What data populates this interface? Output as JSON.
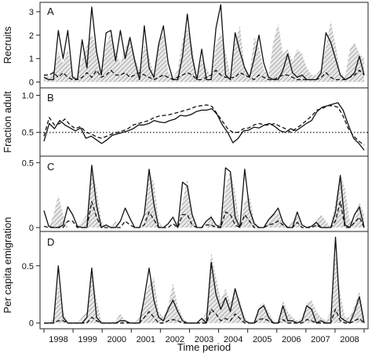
{
  "chart_data": {
    "type": "line",
    "xlabel": "Time period",
    "x_ticks": [
      "1998",
      "1999",
      "2000",
      "2001",
      "2002",
      "2003",
      "2004",
      "2005",
      "2006",
      "2007",
      "2008"
    ],
    "panels": [
      {
        "letter": "A",
        "ylabel": "Recruits",
        "ylim": [
          -0.25,
          3.4
        ],
        "yticks": [
          "0",
          "1",
          "2",
          "3"
        ],
        "reference_line": null,
        "series": [
          {
            "style": "solid",
            "values": [
              0.2,
              0.1,
              0.1,
              2.2,
              1.0,
              2.2,
              0.2,
              0.1,
              1.8,
              0.6,
              3.2,
              1.3,
              0.3,
              2.1,
              2.2,
              0.9,
              2.2,
              1.0,
              1.9,
              0.9,
              0.1,
              2.4,
              0.6,
              0.2,
              1.6,
              2.4,
              0.8,
              0.1,
              0.1,
              1.1,
              2.9,
              1.1,
              0.1,
              1.4,
              0.1,
              0.1,
              2.3,
              3.3,
              0.3,
              0.1,
              2.1,
              1.3,
              0.6,
              0.2,
              1.0,
              2.0,
              0.8,
              0.2,
              0.1,
              0.1,
              0.5,
              1.2,
              0.4,
              0.2,
              0.3,
              0.1,
              0.1,
              0.1,
              0.4,
              2.1,
              1.7,
              1.0,
              0.3,
              0.1,
              0.2,
              0.4,
              1.1,
              0.3
            ]
          },
          {
            "style": "dashed",
            "values": [
              0.3,
              0.3,
              0.4,
              0.2,
              0.4,
              0.2,
              0.1,
              0.1,
              0.2,
              0.4,
              0.2,
              0.5,
              0.2,
              0.3,
              0.5,
              0.3,
              0.3,
              0.4,
              0.2,
              0.3,
              0.4,
              0.3,
              0.2,
              0.1,
              0.2,
              0.3,
              0.2,
              0.1,
              0.2,
              0.3,
              0.4,
              0.3,
              0.1,
              0.1,
              0.2,
              0.3,
              0.5,
              0.3,
              0.2,
              0.2,
              0.2,
              0.4,
              0.3,
              0.2,
              0.1,
              0.3,
              0.2,
              0.1,
              0.1,
              0.2,
              0.3,
              0.3,
              0.2,
              0.1,
              0.1,
              0.1,
              0.1,
              0.1,
              0.2,
              0.4,
              0.2,
              0.1,
              0.1,
              0.1,
              0.2,
              0.3,
              0.5,
              0.3
            ]
          },
          {
            "style": "shaded",
            "values": [
              0.4,
              0.2,
              0.5,
              1.3,
              0.8,
              1.4,
              0.3,
              0.2,
              1.0,
              1.6,
              2.0,
              1.5,
              0.4,
              1.6,
              2.1,
              1.3,
              0.8,
              1.4,
              2.0,
              1.1,
              0.5,
              1.6,
              1.1,
              0.3,
              1.7,
              2.1,
              0.4,
              0.2,
              0.5,
              1.8,
              2.3,
              1.5,
              0.2,
              1.0,
              0.6,
              0.2,
              1.6,
              2.1,
              1.3,
              0.3,
              1.7,
              2.4,
              0.6,
              0.3,
              1.9,
              1.5,
              0.5,
              0.3,
              1.7,
              2.5,
              1.2,
              1.4,
              0.9,
              1.4,
              1.2,
              0.6,
              0.3,
              0.3,
              0.6,
              1.5,
              2.6,
              1.6,
              0.4,
              0.2,
              1.4,
              1.7,
              1.2,
              1.0
            ]
          }
        ]
      },
      {
        "letter": "B",
        "ylabel": "Fraction adult",
        "ylim": [
          0.18,
          1.1
        ],
        "yticks": [
          "0.5",
          "1.0"
        ],
        "reference_line": 0.5,
        "series": [
          {
            "style": "solid",
            "values": [
              0.38,
              0.62,
              0.55,
              0.66,
              0.6,
              0.56,
              0.52,
              0.56,
              0.42,
              0.45,
              0.4,
              0.35,
              0.4,
              0.46,
              0.48,
              0.5,
              0.52,
              0.55,
              0.6,
              0.6,
              0.62,
              0.66,
              0.64,
              0.63,
              0.66,
              0.68,
              0.73,
              0.72,
              0.74,
              0.78,
              0.8,
              0.8,
              0.82,
              0.74,
              0.6,
              0.5,
              0.36,
              0.42,
              0.52,
              0.53,
              0.57,
              0.56,
              0.6,
              0.62,
              0.58,
              0.52,
              0.5,
              0.55,
              0.52,
              0.57,
              0.62,
              0.66,
              0.78,
              0.84,
              0.86,
              0.88,
              0.9,
              0.8,
              0.6,
              0.42,
              0.35,
              0.26
            ]
          },
          {
            "style": "dashed",
            "values": [
              0.45,
              0.7,
              0.6,
              0.62,
              0.68,
              0.6,
              0.55,
              0.58,
              0.5,
              0.48,
              0.44,
              0.42,
              0.45,
              0.48,
              0.5,
              0.52,
              0.55,
              0.6,
              0.62,
              0.64,
              0.66,
              0.7,
              0.72,
              0.73,
              0.74,
              0.76,
              0.78,
              0.8,
              0.82,
              0.85,
              0.86,
              0.87,
              0.85,
              0.75,
              0.65,
              0.55,
              0.5,
              0.5,
              0.55,
              0.56,
              0.6,
              0.62,
              0.6,
              0.6,
              0.62,
              0.58,
              0.55,
              0.5,
              0.55,
              0.6,
              0.66,
              0.72,
              0.8,
              0.82,
              0.86,
              0.86,
              0.84,
              0.72,
              0.55,
              0.45,
              0.38,
              0.33
            ]
          }
        ]
      },
      {
        "letter": "C",
        "ylabel": "",
        "ylim": [
          -0.03,
          0.55
        ],
        "yticks": [
          "0",
          "0.5"
        ],
        "reference_line": null,
        "series": [
          {
            "style": "solid",
            "values": [
              0.13,
              0.01,
              0.0,
              0.0,
              0.02,
              0.16,
              0.1,
              0.01,
              0.0,
              0.0,
              0.48,
              0.17,
              0.0,
              0.02,
              0.0,
              0.0,
              0.05,
              0.15,
              0.07,
              0.0,
              0.0,
              0.1,
              0.45,
              0.18,
              0.0,
              0.0,
              0.03,
              0.08,
              0.0,
              0.35,
              0.32,
              0.1,
              0.0,
              0.0,
              0.05,
              0.08,
              0.02,
              0.0,
              0.46,
              0.43,
              0.08,
              0.0,
              0.45,
              0.14,
              0.03,
              0.0,
              0.0,
              0.06,
              0.1,
              0.15,
              0.04,
              0.0,
              0.0,
              0.12,
              0.02,
              0.0,
              0.01,
              0.04,
              0.0,
              0.0,
              0.0,
              0.12,
              0.4,
              0.02,
              0.0,
              0.1,
              0.16,
              0.0
            ]
          },
          {
            "style": "dashed",
            "values": [
              0.01,
              0.0,
              0.0,
              0.0,
              0.0,
              0.05,
              0.05,
              0.0,
              0.0,
              0.0,
              0.2,
              0.08,
              0.0,
              0.0,
              0.0,
              0.0,
              0.0,
              0.05,
              0.02,
              0.0,
              0.0,
              0.02,
              0.12,
              0.06,
              0.0,
              0.0,
              0.0,
              0.03,
              0.0,
              0.1,
              0.1,
              0.02,
              0.0,
              0.0,
              0.02,
              0.02,
              0.0,
              0.0,
              0.12,
              0.1,
              0.02,
              0.0,
              0.1,
              0.05,
              0.0,
              0.0,
              0.0,
              0.02,
              0.03,
              0.05,
              0.02,
              0.0,
              0.0,
              0.04,
              0.0,
              0.0,
              0.0,
              0.02,
              0.0,
              0.0,
              0.0,
              0.05,
              0.2,
              0.0,
              0.0,
              0.04,
              0.08,
              0.0
            ]
          },
          {
            "style": "shaded",
            "values": [
              0.0,
              0.0,
              0.1,
              0.25,
              0.1,
              0.0,
              0.0,
              0.0,
              0.05,
              0.1,
              0.44,
              0.3,
              0.05,
              0.0,
              0.0,
              0.05,
              0.0,
              0.0,
              0.0,
              0.0,
              0.0,
              0.05,
              0.42,
              0.35,
              0.05,
              0.0,
              0.0,
              0.0,
              0.05,
              0.2,
              0.38,
              0.1,
              0.0,
              0.0,
              0.0,
              0.1,
              0.0,
              0.05,
              0.3,
              0.44,
              0.28,
              0.0,
              0.2,
              0.25,
              0.05,
              0.0,
              0.0,
              0.05,
              0.1,
              0.12,
              0.05,
              0.0,
              0.05,
              0.1,
              0.0,
              0.0,
              0.0,
              0.05,
              0.1,
              0.05,
              0.0,
              0.2,
              0.42,
              0.3,
              0.05,
              0.05,
              0.2,
              0.1
            ]
          }
        ]
      },
      {
        "letter": "D",
        "ylabel": "Per capita emigration",
        "ylim": [
          -0.05,
          0.8
        ],
        "yticks": [
          "0",
          "0.5"
        ],
        "reference_line": null,
        "series": [
          {
            "style": "solid",
            "values": [
              0.0,
              0.0,
              0.0,
              0.5,
              0.05,
              0.0,
              0.0,
              0.0,
              0.0,
              0.05,
              0.48,
              0.05,
              0.0,
              0.0,
              0.0,
              0.0,
              0.02,
              0.02,
              0.0,
              0.0,
              0.0,
              0.22,
              0.48,
              0.2,
              0.05,
              0.02,
              0.12,
              0.2,
              0.1,
              0.02,
              0.0,
              0.0,
              0.0,
              0.04,
              0.0,
              0.53,
              0.25,
              0.12,
              0.22,
              0.1,
              0.3,
              0.15,
              0.02,
              0.0,
              0.0,
              0.12,
              0.15,
              0.05,
              0.0,
              0.0,
              0.15,
              0.02,
              0.02,
              0.0,
              0.02,
              0.15,
              0.12,
              0.0,
              0.02,
              0.0,
              0.0,
              0.75,
              0.05,
              0.02,
              0.0,
              0.1,
              0.23,
              0.0
            ]
          },
          {
            "style": "dashed",
            "values": [
              0.0,
              0.0,
              0.0,
              0.02,
              0.02,
              0.0,
              0.0,
              0.0,
              0.0,
              0.0,
              0.05,
              0.02,
              0.0,
              0.0,
              0.0,
              0.0,
              0.0,
              0.0,
              0.0,
              0.0,
              0.0,
              0.05,
              0.1,
              0.05,
              0.0,
              0.0,
              0.02,
              0.03,
              0.02,
              0.0,
              0.0,
              0.0,
              0.0,
              0.0,
              0.0,
              0.12,
              0.08,
              0.02,
              0.04,
              0.02,
              0.08,
              0.04,
              0.0,
              0.0,
              0.0,
              0.03,
              0.04,
              0.02,
              0.0,
              0.0,
              0.03,
              0.0,
              0.0,
              0.0,
              0.0,
              0.03,
              0.02,
              0.0,
              0.0,
              0.0,
              0.0,
              0.12,
              0.02,
              0.0,
              0.0,
              0.02,
              0.04,
              0.0
            ]
          },
          {
            "style": "shaded",
            "values": [
              0.0,
              0.0,
              0.05,
              0.35,
              0.1,
              0.0,
              0.0,
              0.0,
              0.05,
              0.1,
              0.45,
              0.2,
              0.02,
              0.0,
              0.0,
              0.02,
              0.08,
              0.02,
              0.0,
              0.0,
              0.05,
              0.2,
              0.35,
              0.4,
              0.1,
              0.05,
              0.15,
              0.35,
              0.15,
              0.05,
              0.0,
              0.0,
              0.0,
              0.02,
              0.1,
              0.62,
              0.4,
              0.2,
              0.3,
              0.18,
              0.28,
              0.2,
              0.05,
              0.0,
              0.02,
              0.15,
              0.18,
              0.1,
              0.02,
              0.0,
              0.2,
              0.1,
              0.05,
              0.02,
              0.05,
              0.18,
              0.2,
              0.1,
              0.05,
              0.02,
              0.1,
              0.6,
              0.25,
              0.05,
              0.05,
              0.15,
              0.28,
              0.05
            ]
          }
        ]
      }
    ]
  }
}
